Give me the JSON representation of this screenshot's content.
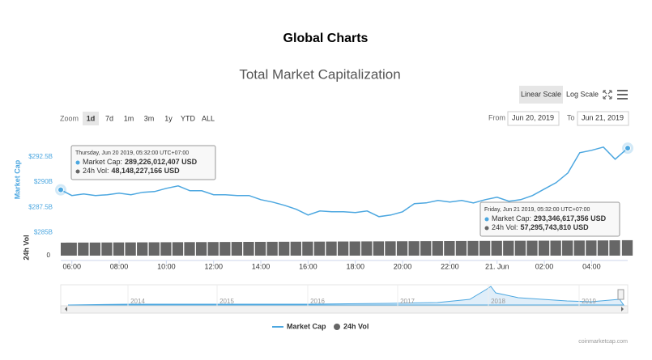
{
  "page_title": "Global Charts",
  "chart_data": {
    "type": "line",
    "title": "Total Market Capitalization",
    "scale_buttons": [
      "Linear Scale",
      "Log Scale"
    ],
    "zoom_label": "Zoom",
    "zoom_buttons": [
      "1d",
      "7d",
      "1m",
      "3m",
      "1y",
      "YTD",
      "ALL"
    ],
    "from_label": "From",
    "from_value": "Jun 20, 2019",
    "to_label": "To",
    "to_value": "Jun 21, 2019",
    "y_label": "Market Cap",
    "y2_label": "24h Vol",
    "x": [
      5.53,
      6,
      6.5,
      7,
      7.5,
      8,
      8.5,
      9,
      9.5,
      10,
      10.5,
      11,
      11.5,
      12,
      12.5,
      13,
      13.5,
      14,
      14.5,
      15,
      15.5,
      16,
      16.5,
      17,
      17.5,
      18,
      18.5,
      19,
      19.5,
      20,
      20.5,
      21,
      21.5,
      22,
      22.5,
      23,
      23.5,
      24,
      24.5,
      25,
      25.5,
      26,
      26.5,
      27,
      27.5,
      28,
      28.5,
      29,
      29.53
    ],
    "xlim": [
      5.53,
      29.53
    ],
    "xticks": [
      {
        "value": 6,
        "label": "06:00"
      },
      {
        "value": 8,
        "label": "08:00"
      },
      {
        "value": 10,
        "label": "10:00"
      },
      {
        "value": 12,
        "label": "12:00"
      },
      {
        "value": 14,
        "label": "14:00"
      },
      {
        "value": 16,
        "label": "16:00"
      },
      {
        "value": 18,
        "label": "18:00"
      },
      {
        "value": 20,
        "label": "20:00"
      },
      {
        "value": 22,
        "label": "22:00"
      },
      {
        "value": 24,
        "label": "21. Jun"
      },
      {
        "value": 26,
        "label": "02:00"
      },
      {
        "value": 28,
        "label": "04:00"
      }
    ],
    "ylim": [
      284.8,
      294.0
    ],
    "yticks": [
      {
        "value": 292.5,
        "label": "$292.5B"
      },
      {
        "value": 290,
        "label": "$290B"
      },
      {
        "value": 287.5,
        "label": "$287.5B"
      },
      {
        "value": 285,
        "label": "$285B"
      }
    ],
    "y2lim": [
      0,
      60
    ],
    "y2ticks": [
      0
    ],
    "series": [
      {
        "name": "Market Cap",
        "color": "#4ca7e0",
        "values": [
          289.226012407,
          288.66,
          288.82,
          288.66,
          288.74,
          288.9,
          288.74,
          288.98,
          289.06,
          289.38,
          289.62,
          289.14,
          289.14,
          288.74,
          288.74,
          288.66,
          288.66,
          288.26,
          288.02,
          287.7,
          287.3,
          286.74,
          287.14,
          287.06,
          287.06,
          286.98,
          287.14,
          286.58,
          286.74,
          287.06,
          287.86,
          287.94,
          288.18,
          288.02,
          288.18,
          287.94,
          288.26,
          288.5,
          288.1,
          288.26,
          288.66,
          289.3,
          289.94,
          290.9,
          292.9,
          293.14,
          293.46,
          292.26,
          293.346617356
        ]
      },
      {
        "name": "24h Vol",
        "color": "#666666",
        "axis": "y2",
        "values": [
          48.148227166,
          48.3,
          48.5,
          48.6,
          48.8,
          49.0,
          49.1,
          49.3,
          49.5,
          49.7,
          49.9,
          50.1,
          50.2,
          50.4,
          50.6,
          50.8,
          51.0,
          51.1,
          51.3,
          51.5,
          51.7,
          51.9,
          52.0,
          52.2,
          52.4,
          52.6,
          52.8,
          52.9,
          53.1,
          53.3,
          53.5,
          53.7,
          53.8,
          54.0,
          54.2,
          54.4,
          54.6,
          54.7,
          54.9,
          55.1,
          55.3,
          55.5,
          55.6,
          55.8,
          56.0,
          56.2,
          56.4,
          56.9,
          57.29574381
        ]
      }
    ],
    "tooltips": [
      {
        "title": "Thursday, Jun 20 2019, 05:32:00 UTC+07:00",
        "rows": [
          [
            "Market Cap:",
            "289,226,012,407 USD"
          ],
          [
            "24h Vol:",
            "48,148,227,166 USD"
          ]
        ]
      },
      {
        "title": "Friday, Jun 21 2019, 05:32:00 UTC+07:00",
        "rows": [
          [
            "Market Cap:",
            "293,346,617,356 USD"
          ],
          [
            "24h Vol:",
            "57,295,743,810 USD"
          ]
        ]
      }
    ],
    "navigator_labels": [
      "2014",
      "2015",
      "2016",
      "2017",
      "2018",
      "2019"
    ],
    "credit": "coinmarketcap.com"
  }
}
